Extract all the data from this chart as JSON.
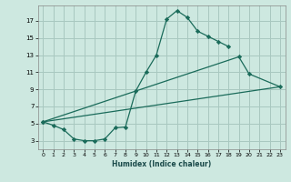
{
  "xlabel": "Humidex (Indice chaleur)",
  "bg_color": "#cde8e0",
  "grid_color": "#a8c8c0",
  "line_color": "#1a6b5a",
  "xlim": [
    -0.5,
    23.5
  ],
  "ylim": [
    2.0,
    18.8
  ],
  "xticks": [
    0,
    1,
    2,
    3,
    4,
    5,
    6,
    7,
    8,
    9,
    10,
    11,
    12,
    13,
    14,
    15,
    16,
    17,
    18,
    19,
    20,
    21,
    22,
    23
  ],
  "yticks": [
    3,
    5,
    7,
    9,
    11,
    13,
    15,
    17
  ],
  "line1_x": [
    0,
    1,
    2,
    3,
    4,
    5,
    6,
    7,
    8,
    9,
    10,
    11,
    12,
    13,
    14,
    15,
    16,
    17,
    18
  ],
  "line1_y": [
    5.2,
    4.8,
    4.3,
    3.2,
    3.0,
    3.0,
    3.2,
    4.5,
    4.6,
    8.8,
    11.0,
    13.0,
    17.2,
    18.2,
    17.4,
    15.8,
    15.2,
    14.6,
    14.0
  ],
  "line2_x": [
    0,
    19,
    20,
    23
  ],
  "line2_y": [
    5.2,
    12.8,
    10.8,
    9.3
  ],
  "line3_x": [
    0,
    23
  ],
  "line3_y": [
    5.2,
    9.3
  ]
}
